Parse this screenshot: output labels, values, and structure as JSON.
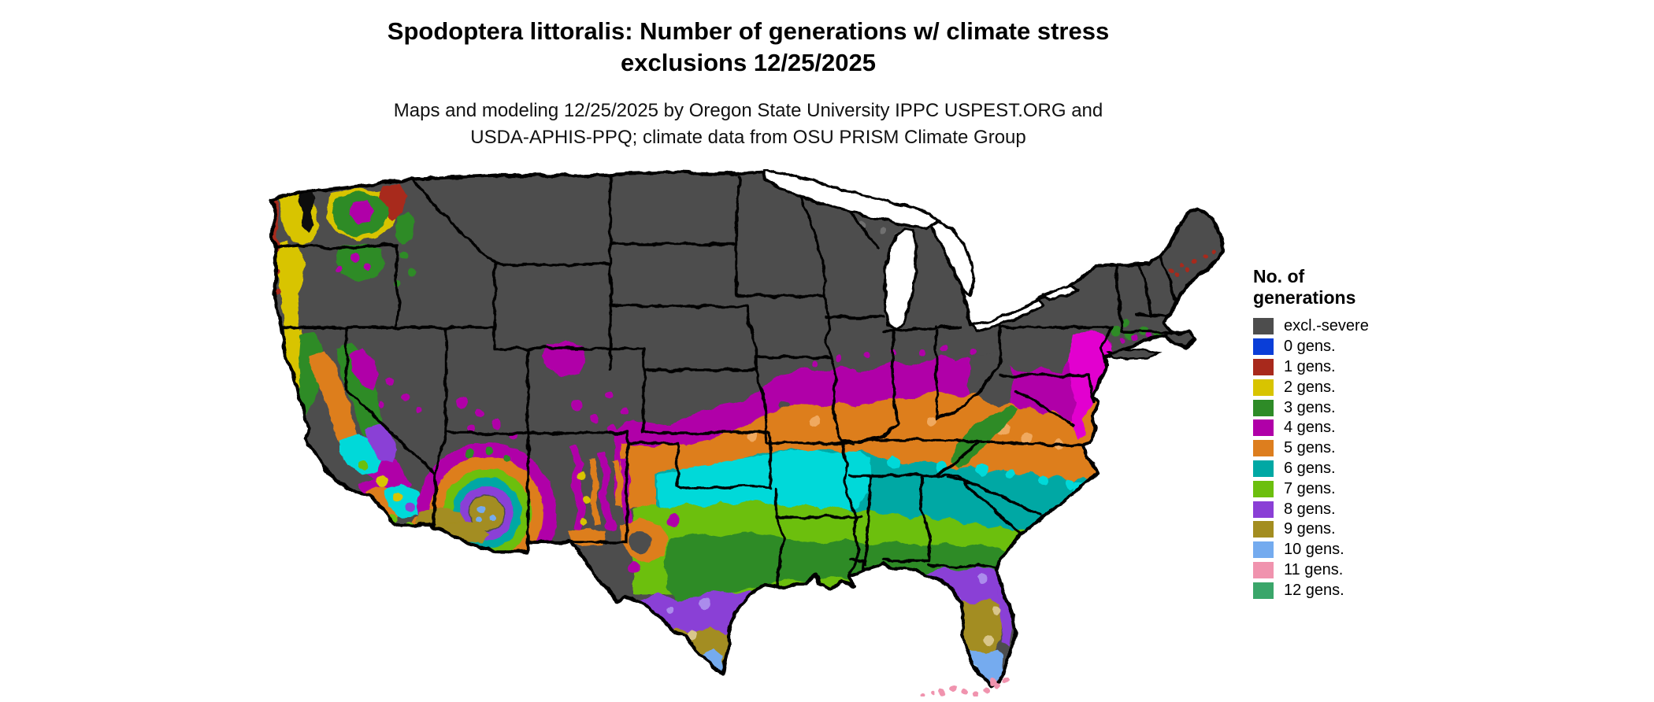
{
  "header": {
    "title_line1": "Spodoptera littoralis: Number of generations w/ climate stress",
    "title_line2": "exclusions 12/25/2025",
    "subtitle_line1": "Maps and modeling 12/25/2025 by Oregon State University IPPC USPEST.ORG and",
    "subtitle_line2": "USDA-APHIS-PPQ; climate data from OSU PRISM Climate Group"
  },
  "legend": {
    "title_line1": "No. of",
    "title_line2": "generations",
    "items": [
      {
        "label": "excl.-severe",
        "color": "#4d4d4d"
      },
      {
        "label": "0 gens.",
        "color": "#0a3ed8"
      },
      {
        "label": "1 gens.",
        "color": "#a8291c"
      },
      {
        "label": "2 gens.",
        "color": "#d8c400"
      },
      {
        "label": "3 gens.",
        "color": "#2e8b27"
      },
      {
        "label": "4 gens.",
        "color": "#b000a8"
      },
      {
        "label": "5 gens.",
        "color": "#dd7e1e"
      },
      {
        "label": "6 gens.",
        "color": "#00a8a4"
      },
      {
        "label": "7 gens.",
        "color": "#6cbf0e"
      },
      {
        "label": "8 gens.",
        "color": "#8a3fd6"
      },
      {
        "label": "9 gens.",
        "color": "#a38d20"
      },
      {
        "label": "10 gens.",
        "color": "#74abef"
      },
      {
        "label": "11 gens.",
        "color": "#f093ae"
      },
      {
        "label": "12 gens.",
        "color": "#3aa66a"
      }
    ]
  },
  "map": {
    "region": "Contiguous United States",
    "type": "raster choropleth",
    "water_color": "#ffffff",
    "boundary_color": "#000000",
    "excluded_fill": "#4d4d4d",
    "band_order_north_to_south": [
      "excl.-severe",
      "4 gens.",
      "5 gens.",
      "6 gens.",
      "7 gens.",
      "3 gens.",
      "8 gens.",
      "9 gens.",
      "10 gens.",
      "11 gens."
    ]
  }
}
